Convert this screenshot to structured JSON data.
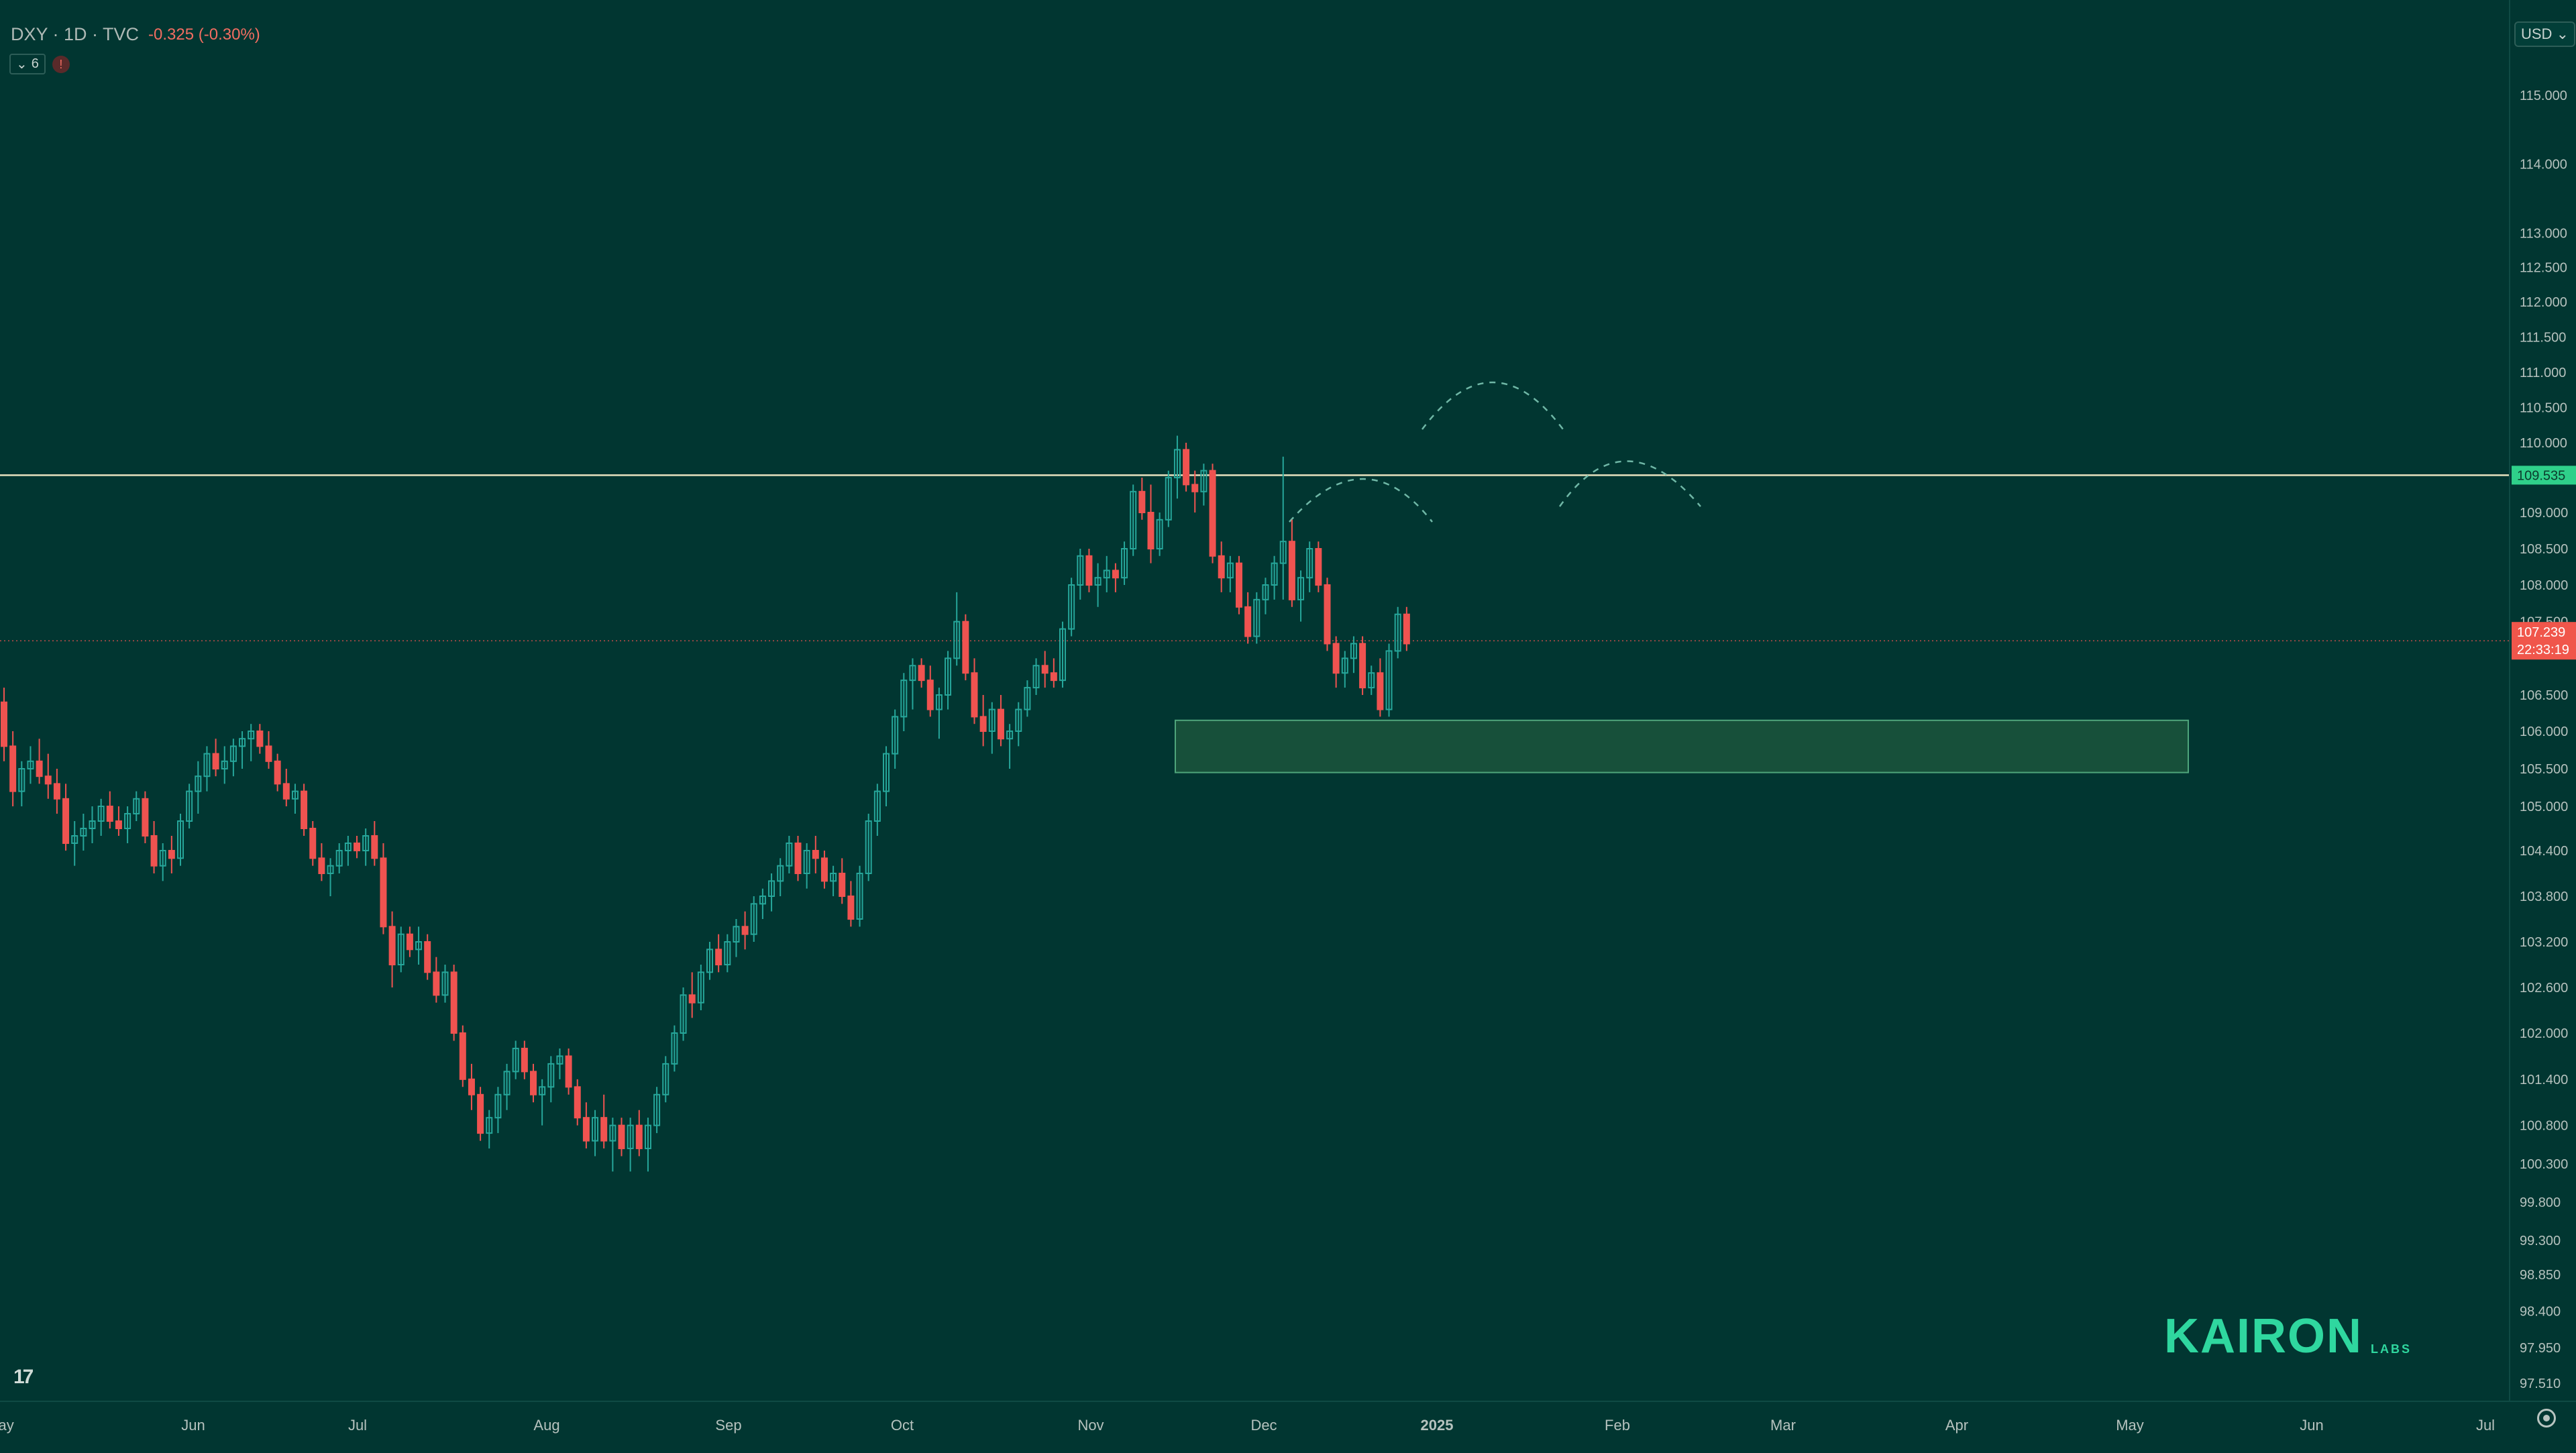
{
  "header": {
    "symbol": "DXY · 1D · TVC",
    "change": "-0.325 (-0.30%)",
    "indicator_count": "6"
  },
  "currency_button": "USD",
  "brand": {
    "name": "KAIRON",
    "suffix": "LABS"
  },
  "colors": {
    "background": "#013631",
    "up": "#26a69a",
    "down": "#ef5350",
    "resistance": "#e9e3c0",
    "zone_fill": "#1f5a3e",
    "zone_border": "#4fa57b",
    "brand": "#2fd79f"
  },
  "chart_data": {
    "type": "candlestick",
    "y_ticks": [
      "115.000",
      "114.000",
      "113.000",
      "112.500",
      "112.000",
      "111.500",
      "111.000",
      "110.500",
      "110.000",
      "109.000",
      "108.500",
      "108.000",
      "107.500",
      "106.500",
      "106.000",
      "105.500",
      "105.000",
      "104.400",
      "103.800",
      "103.200",
      "102.600",
      "102.000",
      "101.400",
      "100.800",
      "100.300",
      "99.800",
      "99.300",
      "98.850",
      "98.400",
      "97.950",
      "97.510"
    ],
    "x_labels": [
      "May",
      "Jun",
      "Jul",
      "Aug",
      "Sep",
      "Oct",
      "Nov",
      "Dec",
      "2025",
      "Feb",
      "Mar",
      "Apr",
      "May",
      "Jun",
      "Jul"
    ],
    "price_labels": {
      "resistance": "109.535",
      "last": "107.239",
      "countdown": "22:33:19"
    },
    "resistance_level": 109.535,
    "last_price": 107.239,
    "support_zone": {
      "from": 105.45,
      "to": 106.15
    },
    "ohlc": [
      [
        106.4,
        106.6,
        105.6,
        105.8
      ],
      [
        105.8,
        106.0,
        105.0,
        105.2
      ],
      [
        105.2,
        105.6,
        105.0,
        105.5
      ],
      [
        105.5,
        105.8,
        105.3,
        105.6
      ],
      [
        105.6,
        105.9,
        105.3,
        105.4
      ],
      [
        105.4,
        105.7,
        105.1,
        105.3
      ],
      [
        105.3,
        105.5,
        104.9,
        105.1
      ],
      [
        105.1,
        105.3,
        104.4,
        104.5
      ],
      [
        104.5,
        104.8,
        104.2,
        104.6
      ],
      [
        104.6,
        104.9,
        104.4,
        104.7
      ],
      [
        104.7,
        105.0,
        104.5,
        104.8
      ],
      [
        104.8,
        105.1,
        104.6,
        105.0
      ],
      [
        105.0,
        105.2,
        104.7,
        104.8
      ],
      [
        104.8,
        105.0,
        104.6,
        104.7
      ],
      [
        104.7,
        105.0,
        104.5,
        104.9
      ],
      [
        104.9,
        105.2,
        104.8,
        105.1
      ],
      [
        105.1,
        105.2,
        104.5,
        104.6
      ],
      [
        104.6,
        104.8,
        104.1,
        104.2
      ],
      [
        104.2,
        104.5,
        104.0,
        104.4
      ],
      [
        104.4,
        104.6,
        104.1,
        104.3
      ],
      [
        104.3,
        104.9,
        104.2,
        104.8
      ],
      [
        104.8,
        105.3,
        104.7,
        105.2
      ],
      [
        105.2,
        105.6,
        104.9,
        105.4
      ],
      [
        105.4,
        105.8,
        105.2,
        105.7
      ],
      [
        105.7,
        105.9,
        105.4,
        105.5
      ],
      [
        105.5,
        105.8,
        105.3,
        105.6
      ],
      [
        105.6,
        105.9,
        105.4,
        105.8
      ],
      [
        105.8,
        106.0,
        105.5,
        105.9
      ],
      [
        105.9,
        106.1,
        105.6,
        106.0
      ],
      [
        106.0,
        106.1,
        105.7,
        105.8
      ],
      [
        105.8,
        106.0,
        105.5,
        105.6
      ],
      [
        105.6,
        105.7,
        105.2,
        105.3
      ],
      [
        105.3,
        105.5,
        105.0,
        105.1
      ],
      [
        105.1,
        105.3,
        104.9,
        105.2
      ],
      [
        105.2,
        105.3,
        104.6,
        104.7
      ],
      [
        104.7,
        104.8,
        104.2,
        104.3
      ],
      [
        104.3,
        104.5,
        104.0,
        104.1
      ],
      [
        104.1,
        104.3,
        103.8,
        104.2
      ],
      [
        104.2,
        104.5,
        104.1,
        104.4
      ],
      [
        104.4,
        104.6,
        104.2,
        104.5
      ],
      [
        104.5,
        104.6,
        104.3,
        104.4
      ],
      [
        104.4,
        104.7,
        104.2,
        104.6
      ],
      [
        104.6,
        104.8,
        104.2,
        104.3
      ],
      [
        104.3,
        104.5,
        103.3,
        103.4
      ],
      [
        103.4,
        103.6,
        102.6,
        102.9
      ],
      [
        102.9,
        103.4,
        102.8,
        103.3
      ],
      [
        103.3,
        103.4,
        103.0,
        103.1
      ],
      [
        103.1,
        103.4,
        102.9,
        103.2
      ],
      [
        103.2,
        103.3,
        102.7,
        102.8
      ],
      [
        102.8,
        103.0,
        102.4,
        102.5
      ],
      [
        102.5,
        102.9,
        102.4,
        102.8
      ],
      [
        102.8,
        102.9,
        101.9,
        102.0
      ],
      [
        102.0,
        102.1,
        101.3,
        101.4
      ],
      [
        101.4,
        101.6,
        101.0,
        101.2
      ],
      [
        101.2,
        101.3,
        100.6,
        100.7
      ],
      [
        100.7,
        101.0,
        100.5,
        100.9
      ],
      [
        100.9,
        101.3,
        100.7,
        101.2
      ],
      [
        101.2,
        101.6,
        101.0,
        101.5
      ],
      [
        101.5,
        101.9,
        101.4,
        101.8
      ],
      [
        101.8,
        101.9,
        101.4,
        101.5
      ],
      [
        101.5,
        101.6,
        101.1,
        101.2
      ],
      [
        101.2,
        101.4,
        100.8,
        101.3
      ],
      [
        101.3,
        101.7,
        101.1,
        101.6
      ],
      [
        101.6,
        101.8,
        101.4,
        101.7
      ],
      [
        101.7,
        101.8,
        101.2,
        101.3
      ],
      [
        101.3,
        101.4,
        100.8,
        100.9
      ],
      [
        100.9,
        101.1,
        100.5,
        100.6
      ],
      [
        100.6,
        101.0,
        100.4,
        100.9
      ],
      [
        100.9,
        101.2,
        100.5,
        100.6
      ],
      [
        100.6,
        100.9,
        100.2,
        100.8
      ],
      [
        100.8,
        100.9,
        100.4,
        100.5
      ],
      [
        100.5,
        100.9,
        100.2,
        100.8
      ],
      [
        100.8,
        101.0,
        100.4,
        100.5
      ],
      [
        100.5,
        100.9,
        100.2,
        100.8
      ],
      [
        100.8,
        101.3,
        100.7,
        101.2
      ],
      [
        101.2,
        101.7,
        101.1,
        101.6
      ],
      [
        101.6,
        102.1,
        101.5,
        102.0
      ],
      [
        102.0,
        102.6,
        101.9,
        102.5
      ],
      [
        102.5,
        102.8,
        102.2,
        102.4
      ],
      [
        102.4,
        102.9,
        102.3,
        102.8
      ],
      [
        102.8,
        103.2,
        102.7,
        103.1
      ],
      [
        103.1,
        103.3,
        102.8,
        102.9
      ],
      [
        102.9,
        103.3,
        102.8,
        103.2
      ],
      [
        103.2,
        103.5,
        103.0,
        103.4
      ],
      [
        103.4,
        103.6,
        103.1,
        103.3
      ],
      [
        103.3,
        103.8,
        103.2,
        103.7
      ],
      [
        103.7,
        103.9,
        103.5,
        103.8
      ],
      [
        103.8,
        104.1,
        103.6,
        104.0
      ],
      [
        104.0,
        104.3,
        103.8,
        104.2
      ],
      [
        104.2,
        104.6,
        104.1,
        104.5
      ],
      [
        104.5,
        104.6,
        104.0,
        104.1
      ],
      [
        104.1,
        104.5,
        103.9,
        104.4
      ],
      [
        104.4,
        104.6,
        104.1,
        104.3
      ],
      [
        104.3,
        104.4,
        103.9,
        104.0
      ],
      [
        104.0,
        104.2,
        103.8,
        104.1
      ],
      [
        104.1,
        104.3,
        103.7,
        103.8
      ],
      [
        103.8,
        104.0,
        103.4,
        103.5
      ],
      [
        103.5,
        104.2,
        103.4,
        104.1
      ],
      [
        104.1,
        104.9,
        104.0,
        104.8
      ],
      [
        104.8,
        105.3,
        104.6,
        105.2
      ],
      [
        105.2,
        105.8,
        105.0,
        105.7
      ],
      [
        105.7,
        106.3,
        105.5,
        106.2
      ],
      [
        106.2,
        106.8,
        106.0,
        106.7
      ],
      [
        106.7,
        107.0,
        106.3,
        106.9
      ],
      [
        106.9,
        107.0,
        106.6,
        106.7
      ],
      [
        106.7,
        106.9,
        106.2,
        106.3
      ],
      [
        106.3,
        106.6,
        105.9,
        106.5
      ],
      [
        106.5,
        107.1,
        106.3,
        107.0
      ],
      [
        107.0,
        107.9,
        106.9,
        107.5
      ],
      [
        107.5,
        107.6,
        106.7,
        106.8
      ],
      [
        106.8,
        107.0,
        106.1,
        106.2
      ],
      [
        106.2,
        106.5,
        105.8,
        106.0
      ],
      [
        106.0,
        106.4,
        105.7,
        106.3
      ],
      [
        106.3,
        106.5,
        105.8,
        105.9
      ],
      [
        105.9,
        106.1,
        105.5,
        106.0
      ],
      [
        106.0,
        106.4,
        105.8,
        106.3
      ],
      [
        106.3,
        106.7,
        106.2,
        106.6
      ],
      [
        106.6,
        107.0,
        106.5,
        106.9
      ],
      [
        106.9,
        107.1,
        106.6,
        106.8
      ],
      [
        106.8,
        107.0,
        106.6,
        106.7
      ],
      [
        106.7,
        107.5,
        106.6,
        107.4
      ],
      [
        107.4,
        108.1,
        107.3,
        108.0
      ],
      [
        108.0,
        108.5,
        107.8,
        108.4
      ],
      [
        108.4,
        108.5,
        107.9,
        108.0
      ],
      [
        108.0,
        108.3,
        107.7,
        108.1
      ],
      [
        108.1,
        108.4,
        107.9,
        108.2
      ],
      [
        108.2,
        108.3,
        107.9,
        108.1
      ],
      [
        108.1,
        108.6,
        108.0,
        108.5
      ],
      [
        108.5,
        109.4,
        108.4,
        109.3
      ],
      [
        109.3,
        109.5,
        108.9,
        109.0
      ],
      [
        109.0,
        109.4,
        108.3,
        108.5
      ],
      [
        108.5,
        109.0,
        108.4,
        108.9
      ],
      [
        108.9,
        109.6,
        108.8,
        109.5
      ],
      [
        109.5,
        110.1,
        109.2,
        109.9
      ],
      [
        109.9,
        110.0,
        109.3,
        109.4
      ],
      [
        109.4,
        109.6,
        109.0,
        109.3
      ],
      [
        109.3,
        109.7,
        109.1,
        109.6
      ],
      [
        109.6,
        109.7,
        108.3,
        108.4
      ],
      [
        108.4,
        108.6,
        107.9,
        108.1
      ],
      [
        108.1,
        108.4,
        107.9,
        108.3
      ],
      [
        108.3,
        108.4,
        107.6,
        107.7
      ],
      [
        107.7,
        107.9,
        107.2,
        107.3
      ],
      [
        107.3,
        107.9,
        107.2,
        107.8
      ],
      [
        107.8,
        108.1,
        107.6,
        108.0
      ],
      [
        108.0,
        108.4,
        107.8,
        108.3
      ],
      [
        108.3,
        109.8,
        107.8,
        108.6
      ],
      [
        108.6,
        108.9,
        107.7,
        107.8
      ],
      [
        107.8,
        108.2,
        107.5,
        108.1
      ],
      [
        108.1,
        108.6,
        107.9,
        108.5
      ],
      [
        108.5,
        108.6,
        107.9,
        108.0
      ],
      [
        108.0,
        108.1,
        107.1,
        107.2
      ],
      [
        107.2,
        107.3,
        106.6,
        106.8
      ],
      [
        106.8,
        107.1,
        106.6,
        107.0
      ],
      [
        107.0,
        107.3,
        106.8,
        107.2
      ],
      [
        107.2,
        107.3,
        106.5,
        106.6
      ],
      [
        106.6,
        106.9,
        106.5,
        106.8
      ],
      [
        106.8,
        107.0,
        106.2,
        106.3
      ],
      [
        106.3,
        107.2,
        106.2,
        107.1
      ],
      [
        107.1,
        107.7,
        107.0,
        107.6
      ],
      [
        107.6,
        107.7,
        107.1,
        107.2
      ]
    ]
  }
}
